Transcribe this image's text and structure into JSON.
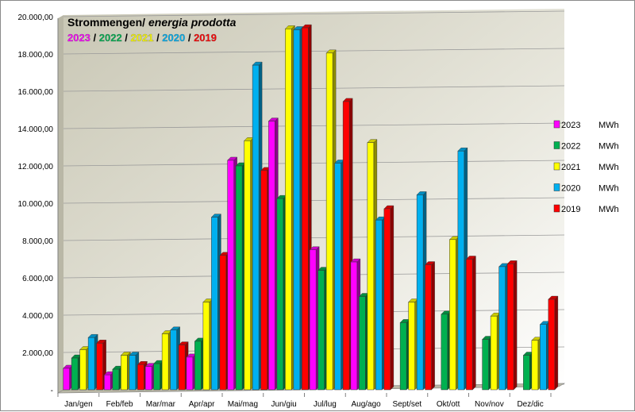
{
  "chart_data": {
    "type": "bar",
    "title": "Strommengen/",
    "title_italic": "energia prodotta",
    "subtitle_years": [
      {
        "text": "2023",
        "color": "#ff00ff"
      },
      {
        "text": "2022",
        "color": "#00b050"
      },
      {
        "text": "2021",
        "color": "#ffff00"
      },
      {
        "text": "2020",
        "color": "#00b0f0"
      },
      {
        "text": "2019",
        "color": "#ff0000"
      }
    ],
    "subtitle_separator": " / ",
    "categories": [
      "Jan/gen",
      "Feb/feb",
      "Mar/mar",
      "Apr/apr",
      "Mai/mag",
      "Jun/giu",
      "Jul/lug",
      "Aug/ago",
      "Sept/set",
      "Okt/ott",
      "Nov/nov",
      "Dez/dic"
    ],
    "series": [
      {
        "name": "2023",
        "unit": "MWh",
        "color": "#ff00ff",
        "values": [
          1150,
          800,
          1250,
          1750,
          12300,
          14400,
          7500,
          6850,
          null,
          null,
          null,
          null
        ]
      },
      {
        "name": "2022",
        "unit": "MWh",
        "color": "#00b050",
        "values": [
          1700,
          1100,
          1400,
          2600,
          12000,
          10250,
          6400,
          5000,
          3600,
          4050,
          2700,
          1850
        ]
      },
      {
        "name": "2021",
        "unit": "MWh",
        "color": "#ffff00",
        "values": [
          2150,
          1850,
          3000,
          4700,
          13350,
          19350,
          18050,
          13250,
          4700,
          8050,
          3950,
          2650
        ]
      },
      {
        "name": "2020",
        "unit": "MWh",
        "color": "#00b0f0",
        "values": [
          2800,
          1850,
          3200,
          9250,
          17400,
          19300,
          12150,
          9100,
          10450,
          12800,
          6600,
          3500
        ]
      },
      {
        "name": "2019",
        "unit": "MWh",
        "color": "#ff0000",
        "values": [
          2500,
          1350,
          2400,
          7200,
          11750,
          19400,
          15450,
          9700,
          6700,
          7000,
          6750,
          4850
        ]
      }
    ],
    "yticks": [
      "-",
      "2.000,00",
      "4.000,00",
      "6.000,00",
      "8.000,00",
      "10.000,00",
      "12.000,00",
      "14.000,00",
      "16.000,00",
      "18.000,00",
      "20.000,00"
    ],
    "ylim": [
      0,
      20000
    ],
    "grid": true,
    "legend_position": "right"
  }
}
